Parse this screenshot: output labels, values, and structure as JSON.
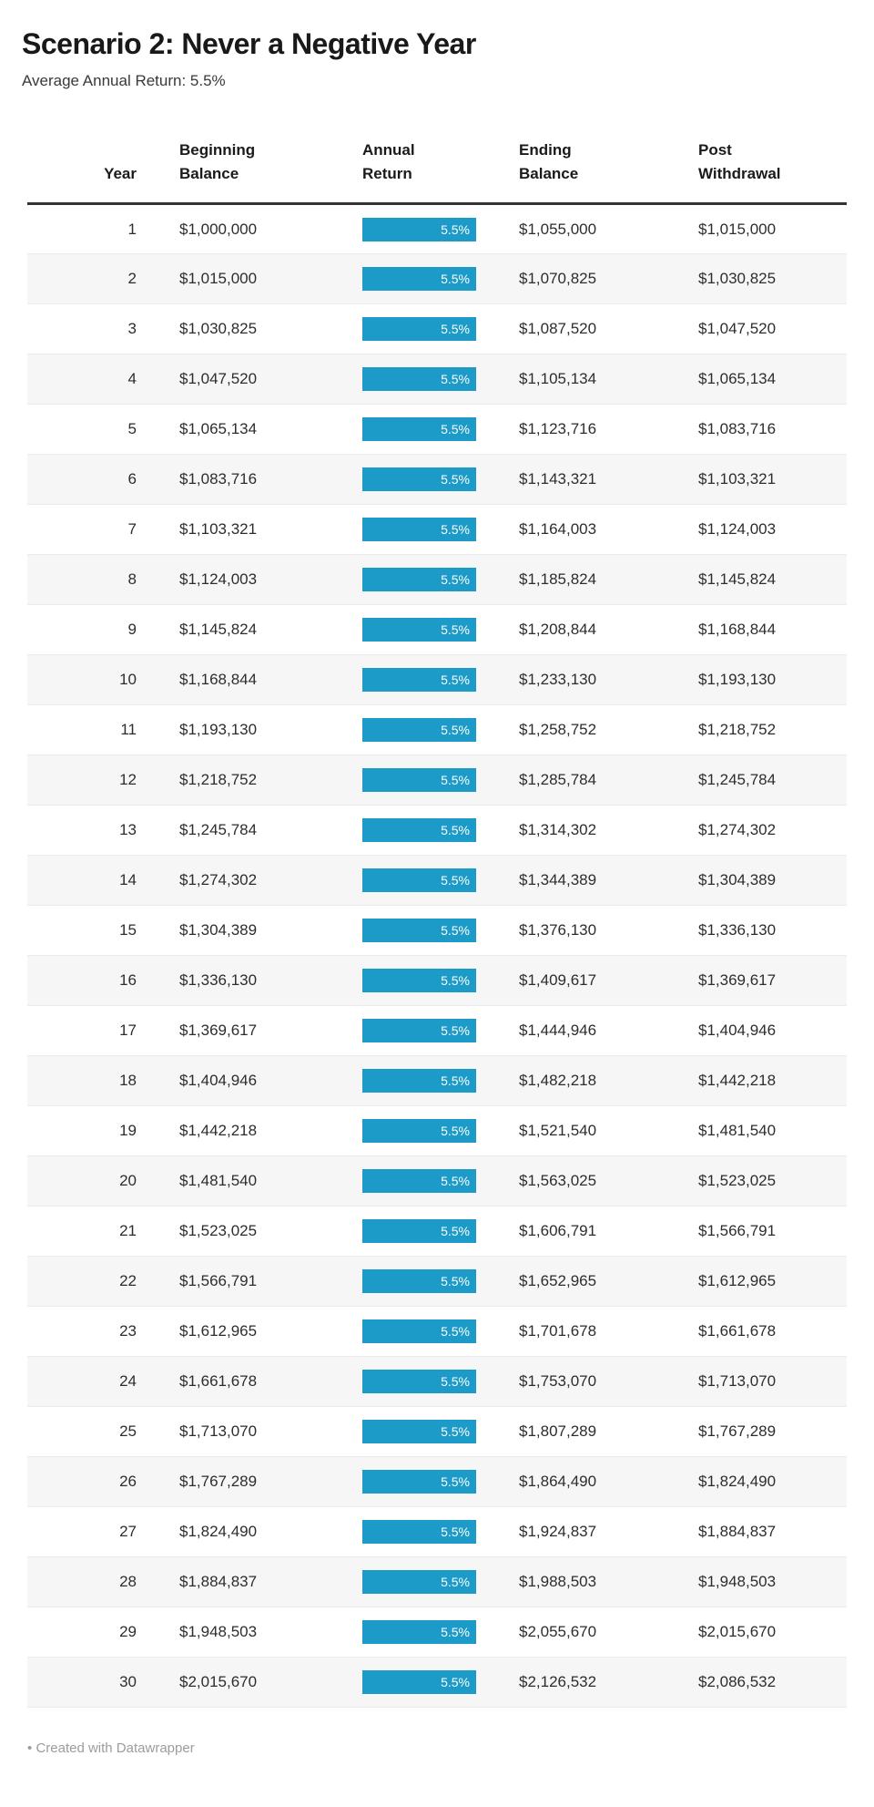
{
  "header": {
    "title": "Scenario 2: Never a Negative Year",
    "subtitle": "Average Annual Return: 5.5%"
  },
  "table": {
    "columns": [
      {
        "key": "year",
        "lines": [
          "Year"
        ]
      },
      {
        "key": "beginning",
        "lines": [
          "Beginning",
          "Balance"
        ]
      },
      {
        "key": "return",
        "lines": [
          "Annual",
          "Return"
        ]
      },
      {
        "key": "ending",
        "lines": [
          "Ending",
          "Balance"
        ]
      },
      {
        "key": "post",
        "lines": [
          "Post",
          "Withdrawal"
        ]
      }
    ]
  },
  "chart_data": {
    "type": "table",
    "title": "Scenario 2: Never a Negative Year",
    "subtitle": "Average Annual Return: 5.5%",
    "columns": [
      "Year",
      "Beginning Balance",
      "Annual Return",
      "Ending Balance",
      "Post Withdrawal"
    ],
    "bar_column": "Annual Return",
    "annual_return_percent": 5.5,
    "bar_color": "#1c9bc8",
    "rows": [
      {
        "year": 1,
        "beginning": "$1,000,000",
        "return": "5.5%",
        "ending": "$1,055,000",
        "post": "$1,015,000"
      },
      {
        "year": 2,
        "beginning": "$1,015,000",
        "return": "5.5%",
        "ending": "$1,070,825",
        "post": "$1,030,825"
      },
      {
        "year": 3,
        "beginning": "$1,030,825",
        "return": "5.5%",
        "ending": "$1,087,520",
        "post": "$1,047,520"
      },
      {
        "year": 4,
        "beginning": "$1,047,520",
        "return": "5.5%",
        "ending": "$1,105,134",
        "post": "$1,065,134"
      },
      {
        "year": 5,
        "beginning": "$1,065,134",
        "return": "5.5%",
        "ending": "$1,123,716",
        "post": "$1,083,716"
      },
      {
        "year": 6,
        "beginning": "$1,083,716",
        "return": "5.5%",
        "ending": "$1,143,321",
        "post": "$1,103,321"
      },
      {
        "year": 7,
        "beginning": "$1,103,321",
        "return": "5.5%",
        "ending": "$1,164,003",
        "post": "$1,124,003"
      },
      {
        "year": 8,
        "beginning": "$1,124,003",
        "return": "5.5%",
        "ending": "$1,185,824",
        "post": "$1,145,824"
      },
      {
        "year": 9,
        "beginning": "$1,145,824",
        "return": "5.5%",
        "ending": "$1,208,844",
        "post": "$1,168,844"
      },
      {
        "year": 10,
        "beginning": "$1,168,844",
        "return": "5.5%",
        "ending": "$1,233,130",
        "post": "$1,193,130"
      },
      {
        "year": 11,
        "beginning": "$1,193,130",
        "return": "5.5%",
        "ending": "$1,258,752",
        "post": "$1,218,752"
      },
      {
        "year": 12,
        "beginning": "$1,218,752",
        "return": "5.5%",
        "ending": "$1,285,784",
        "post": "$1,245,784"
      },
      {
        "year": 13,
        "beginning": "$1,245,784",
        "return": "5.5%",
        "ending": "$1,314,302",
        "post": "$1,274,302"
      },
      {
        "year": 14,
        "beginning": "$1,274,302",
        "return": "5.5%",
        "ending": "$1,344,389",
        "post": "$1,304,389"
      },
      {
        "year": 15,
        "beginning": "$1,304,389",
        "return": "5.5%",
        "ending": "$1,376,130",
        "post": "$1,336,130"
      },
      {
        "year": 16,
        "beginning": "$1,336,130",
        "return": "5.5%",
        "ending": "$1,409,617",
        "post": "$1,369,617"
      },
      {
        "year": 17,
        "beginning": "$1,369,617",
        "return": "5.5%",
        "ending": "$1,444,946",
        "post": "$1,404,946"
      },
      {
        "year": 18,
        "beginning": "$1,404,946",
        "return": "5.5%",
        "ending": "$1,482,218",
        "post": "$1,442,218"
      },
      {
        "year": 19,
        "beginning": "$1,442,218",
        "return": "5.5%",
        "ending": "$1,521,540",
        "post": "$1,481,540"
      },
      {
        "year": 20,
        "beginning": "$1,481,540",
        "return": "5.5%",
        "ending": "$1,563,025",
        "post": "$1,523,025"
      },
      {
        "year": 21,
        "beginning": "$1,523,025",
        "return": "5.5%",
        "ending": "$1,606,791",
        "post": "$1,566,791"
      },
      {
        "year": 22,
        "beginning": "$1,566,791",
        "return": "5.5%",
        "ending": "$1,652,965",
        "post": "$1,612,965"
      },
      {
        "year": 23,
        "beginning": "$1,612,965",
        "return": "5.5%",
        "ending": "$1,701,678",
        "post": "$1,661,678"
      },
      {
        "year": 24,
        "beginning": "$1,661,678",
        "return": "5.5%",
        "ending": "$1,753,070",
        "post": "$1,713,070"
      },
      {
        "year": 25,
        "beginning": "$1,713,070",
        "return": "5.5%",
        "ending": "$1,807,289",
        "post": "$1,767,289"
      },
      {
        "year": 26,
        "beginning": "$1,767,289",
        "return": "5.5%",
        "ending": "$1,864,490",
        "post": "$1,824,490"
      },
      {
        "year": 27,
        "beginning": "$1,824,490",
        "return": "5.5%",
        "ending": "$1,924,837",
        "post": "$1,884,837"
      },
      {
        "year": 28,
        "beginning": "$1,884,837",
        "return": "5.5%",
        "ending": "$1,988,503",
        "post": "$1,948,503"
      },
      {
        "year": 29,
        "beginning": "$1,948,503",
        "return": "5.5%",
        "ending": "$2,055,670",
        "post": "$2,015,670"
      },
      {
        "year": 30,
        "beginning": "$2,015,670",
        "return": "5.5%",
        "ending": "$2,126,532",
        "post": "$2,086,532"
      }
    ]
  },
  "colors": {
    "bar": "#1c9bc8",
    "zebra_stripe": "#f6f6f6",
    "header_rule": "#333333",
    "row_rule": "#ebebeb",
    "footer_text": "#9c9c9c"
  },
  "footer": {
    "attribution": "Created with Datawrapper",
    "bullet": "•"
  }
}
